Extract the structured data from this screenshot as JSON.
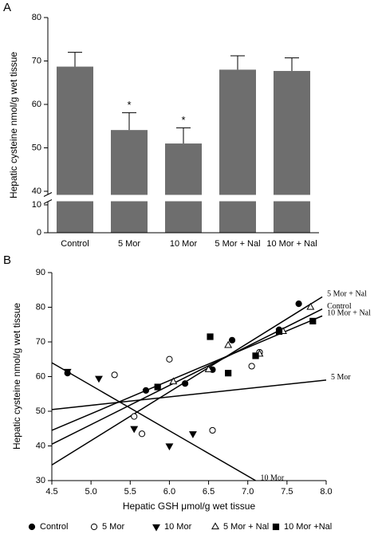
{
  "chart_data": [
    {
      "type": "bar",
      "panel": "A",
      "y_label": "Hepatic cysteine nmol/g wet tissue",
      "categories": [
        "Control",
        "5 Mor",
        "10 Mor",
        "5 Mor + Nal",
        "10 Mor + Nal"
      ],
      "values": [
        68.7,
        54.1,
        51.0,
        68.0,
        67.7
      ],
      "errors": [
        3.3,
        4.0,
        3.6,
        3.2,
        3.0
      ],
      "annotations": [
        null,
        "*",
        "*",
        null,
        null
      ],
      "color": "#6e6e6e",
      "ylim": [
        0,
        80
      ],
      "y_break": [
        10,
        40
      ],
      "yticks": [
        0,
        10,
        40,
        50,
        60,
        70,
        80
      ]
    },
    {
      "type": "scatter",
      "panel": "B",
      "y_label": "Hepatic cysteine nmol/g wet tissue",
      "x_label": "Hepatic GSH μmol/g wet tissue",
      "xlim": [
        4.5,
        8.0
      ],
      "ylim": [
        30,
        90
      ],
      "xticks": [
        4.5,
        {
          "value": 5,
          "label": "5.0"
        },
        5.5,
        {
          "value": 6,
          "label": "6.0"
        },
        6.5,
        {
          "value": 7,
          "label": "7.0"
        },
        7.5,
        {
          "value": 8,
          "label": "8.0"
        }
      ],
      "yticks": [
        30,
        40,
        50,
        60,
        70,
        80,
        90
      ],
      "series": [
        {
          "name": "Control",
          "marker": "circle-filled",
          "color": "#000000",
          "x": [
            4.7,
            5.7,
            6.2,
            6.55,
            6.8,
            7.15,
            7.4,
            7.65
          ],
          "y": [
            61,
            56,
            58,
            62,
            70.5,
            67,
            73.5,
            81
          ]
        },
        {
          "name": "5 Mor",
          "marker": "circle-open",
          "color": "#000000",
          "x": [
            5.3,
            5.55,
            5.65,
            6.0,
            6.55,
            7.05,
            7.15
          ],
          "y": [
            60.5,
            48.5,
            43.5,
            65,
            44.5,
            63,
            67
          ]
        },
        {
          "name": "10 Mor",
          "marker": "triangle-down-filled",
          "color": "#000000",
          "x": [
            4.7,
            5.1,
            5.55,
            6.0,
            6.3
          ],
          "y": [
            61.5,
            59.5,
            45,
            40,
            43.5
          ]
        },
        {
          "name": "5 Mor + Nal",
          "marker": "triangle-up-open",
          "color": "#000000",
          "x": [
            6.05,
            6.5,
            6.75,
            7.15,
            7.45,
            7.8
          ],
          "y": [
            58.5,
            62,
            69,
            66.5,
            73,
            80
          ]
        },
        {
          "name": "10 Mor +Nal",
          "marker": "square-filled",
          "color": "#000000",
          "x": [
            5.85,
            6.52,
            6.75,
            7.1,
            7.4,
            7.83
          ],
          "y": [
            57,
            71.5,
            61,
            66,
            73,
            76
          ]
        }
      ],
      "fits": [
        {
          "label": "5 Mor + Nal",
          "x": [
            4.5,
            7.95
          ],
          "y": [
            34.5,
            83
          ]
        },
        {
          "label": "Control",
          "x": [
            4.5,
            7.95
          ],
          "y": [
            40.5,
            79.5
          ]
        },
        {
          "label": "10 Mor + Nal",
          "x": [
            4.5,
            7.95
          ],
          "y": [
            44.5,
            77.5
          ]
        },
        {
          "label": "5 Mor",
          "x": [
            4.5,
            8.0
          ],
          "y": [
            50.5,
            59
          ]
        },
        {
          "label": "10 Mor",
          "x": [
            4.5,
            7.1
          ],
          "y": [
            64,
            30
          ]
        }
      ]
    }
  ]
}
